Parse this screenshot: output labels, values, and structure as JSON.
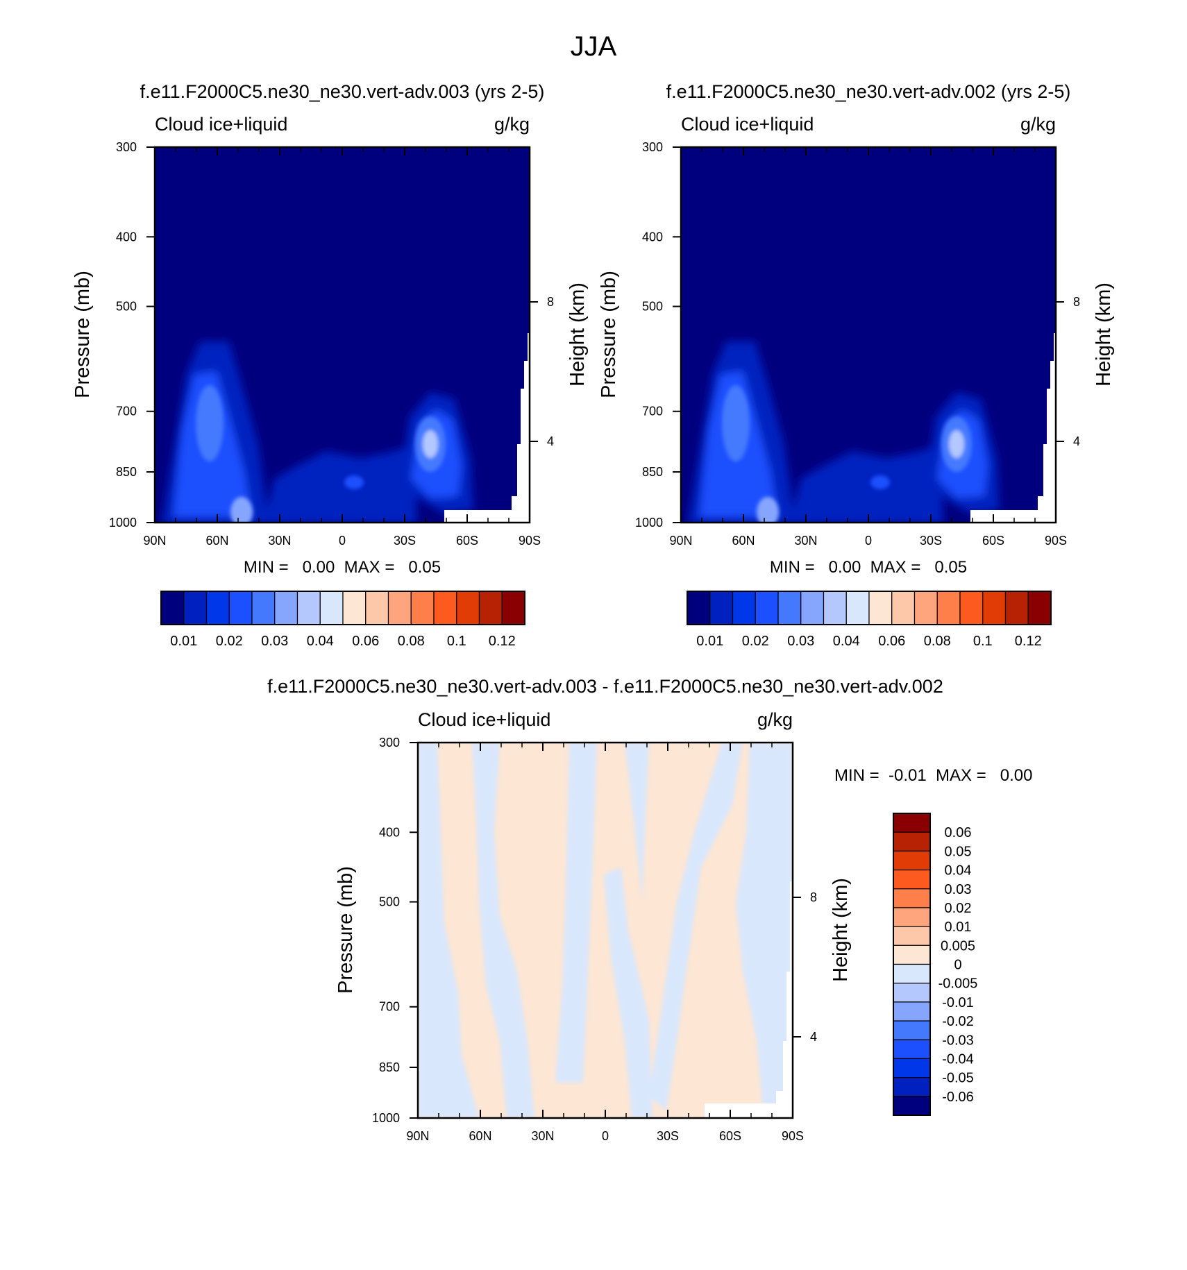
{
  "page": {
    "title": "JJA"
  },
  "chart_data": [
    {
      "type": "heatmap",
      "title": "f.e11.F2000C5.ne30_ne30.vert-adv.003 (yrs 2-5)",
      "left_label": "Cloud ice+liquid",
      "right_label": "g/kg",
      "ylabel": "Pressure (mb)",
      "ylabel_right": "Height (km)",
      "x_ticks": [
        "90N",
        "60N",
        "30N",
        "0",
        "30S",
        "60S",
        "90S"
      ],
      "y_ticks": [
        "300",
        "400",
        "500",
        "700",
        "850",
        "1000"
      ],
      "y_right_ticks": [
        "8",
        "4"
      ],
      "ylim": [
        1000,
        300
      ],
      "y_scale": "log",
      "stats": "MIN =   0.00  MAX =   0.05",
      "colorbar": {
        "orientation": "horizontal",
        "labels": [
          "0.01",
          "0.02",
          "0.03",
          "0.04",
          "0.06",
          "0.08",
          "0.1",
          "0.12"
        ],
        "colors": [
          "#00007f",
          "#0020bf",
          "#0037e8",
          "#1c4ffe",
          "#4479fe",
          "#86a6fe",
          "#b4c8fe",
          "#d9e7fd",
          "#fde6d3",
          "#fdc7aa",
          "#fea57d",
          "#fe7f49",
          "#fd5a1f",
          "#e23c06",
          "#b82204",
          "#8a0002"
        ]
      }
    },
    {
      "type": "heatmap",
      "title": "f.e11.F2000C5.ne30_ne30.vert-adv.002 (yrs 2-5)",
      "left_label": "Cloud ice+liquid",
      "right_label": "g/kg",
      "ylabel": "Pressure (mb)",
      "ylabel_right": "Height (km)",
      "x_ticks": [
        "90N",
        "60N",
        "30N",
        "0",
        "30S",
        "60S",
        "90S"
      ],
      "y_ticks": [
        "300",
        "400",
        "500",
        "700",
        "850",
        "1000"
      ],
      "y_right_ticks": [
        "8",
        "4"
      ],
      "ylim": [
        1000,
        300
      ],
      "y_scale": "log",
      "stats": "MIN =   0.00  MAX =   0.05",
      "colorbar": {
        "orientation": "horizontal",
        "labels": [
          "0.01",
          "0.02",
          "0.03",
          "0.04",
          "0.06",
          "0.08",
          "0.1",
          "0.12"
        ],
        "colors": [
          "#00007f",
          "#0020bf",
          "#0037e8",
          "#1c4ffe",
          "#4479fe",
          "#86a6fe",
          "#b4c8fe",
          "#d9e7fd",
          "#fde6d3",
          "#fdc7aa",
          "#fea57d",
          "#fe7f49",
          "#fd5a1f",
          "#e23c06",
          "#b82204",
          "#8a0002"
        ]
      }
    },
    {
      "type": "heatmap",
      "title": "f.e11.F2000C5.ne30_ne30.vert-adv.003 - f.e11.F2000C5.ne30_ne30.vert-adv.002",
      "left_label": "Cloud ice+liquid",
      "right_label": "g/kg",
      "ylabel": "Pressure (mb)",
      "ylabel_right": "Height (km)",
      "x_ticks": [
        "90N",
        "60N",
        "30N",
        "0",
        "30S",
        "60S",
        "90S"
      ],
      "y_ticks": [
        "300",
        "400",
        "500",
        "700",
        "850",
        "1000"
      ],
      "y_right_ticks": [
        "8",
        "4"
      ],
      "ylim": [
        1000,
        300
      ],
      "y_scale": "log",
      "stats": "MIN =  -0.01  MAX =   0.00",
      "colorbar": {
        "orientation": "vertical",
        "labels": [
          "0.06",
          "0.05",
          "0.04",
          "0.03",
          "0.02",
          "0.01",
          "0.005",
          "0",
          "-0.005",
          "-0.01",
          "-0.02",
          "-0.03",
          "-0.04",
          "-0.05",
          "-0.06"
        ],
        "colors": [
          "#8a0002",
          "#b82204",
          "#e23c06",
          "#fd5a1f",
          "#fe7f49",
          "#fea57d",
          "#fdc7aa",
          "#fde6d3",
          "#d9e7fd",
          "#b4c8fe",
          "#86a6fe",
          "#4479fe",
          "#1c4ffe",
          "#0037e8",
          "#0020bf",
          "#00007f"
        ]
      }
    }
  ]
}
